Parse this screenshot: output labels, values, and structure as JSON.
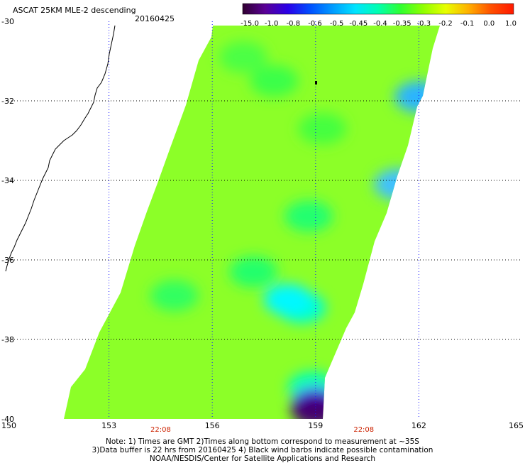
{
  "header": {
    "title": "ASCAT 25KM MLE-2 descending",
    "date": "20160425"
  },
  "colorbar": {
    "labels": [
      "-15.0",
      "-1.0",
      "-0.8",
      "-0.6",
      "-0.5",
      "-0.45",
      "-0.4",
      "-0.35",
      "-0.3",
      "-0.2",
      "-0.1",
      "0.0",
      "1.0"
    ],
    "colors": [
      "#300030",
      "#5a0096",
      "#2a00e8",
      "#0050ff",
      "#009cff",
      "#00e4ff",
      "#00ffb0",
      "#30ff30",
      "#90ff00",
      "#e8ff00",
      "#ffb000",
      "#ff5000",
      "#ff1800"
    ]
  },
  "axes": {
    "lon_labels": [
      "150",
      "153",
      "156",
      "159",
      "162",
      "165"
    ],
    "lat_labels": [
      "-30",
      "-32",
      "-34",
      "-36",
      "-38",
      "-40"
    ],
    "time_labels": [
      "22:08",
      "22:08"
    ],
    "time_color": "#cc2200"
  },
  "notes": {
    "line1": "Note: 1) Times are GMT 2)Times along bottom correspond to measurement at ~35S",
    "line2": "3)Data buffer is 22 hrs from 20160425 4) Black wind barbs indicate possible contamination",
    "line3": "NOAA/NESDIS/Center for Satellite Applications and Research"
  },
  "swath": {
    "base_color": "#8cff28",
    "patches": [
      {
        "lon": 156.9,
        "lat": -30.9,
        "color": "#4cff44"
      },
      {
        "lon": 157.8,
        "lat": -31.5,
        "color": "#3aff4a"
      },
      {
        "lon": 159.2,
        "lat": -32.7,
        "color": "#44ff40"
      },
      {
        "lon": 158.8,
        "lat": -34.9,
        "color": "#20ff70"
      },
      {
        "lon": 157.2,
        "lat": -36.3,
        "color": "#24ff6c"
      },
      {
        "lon": 158.6,
        "lat": -37.2,
        "color": "#00ffd0"
      },
      {
        "lon": 158.2,
        "lat": -37.0,
        "color": "#00f8ff"
      },
      {
        "lon": 154.9,
        "lat": -36.9,
        "color": "#30ff60"
      },
      {
        "lon": 158.9,
        "lat": -39.2,
        "color": "#00ffb8"
      },
      {
        "lon": 159.0,
        "lat": -39.6,
        "color": "#4a18ff"
      },
      {
        "lon": 159.0,
        "lat": -39.8,
        "color": "#440070"
      },
      {
        "lon": 162.0,
        "lat": -31.9,
        "color": "#2cb4ff"
      },
      {
        "lon": 161.4,
        "lat": -34.1,
        "color": "#40c0ff"
      }
    ]
  }
}
